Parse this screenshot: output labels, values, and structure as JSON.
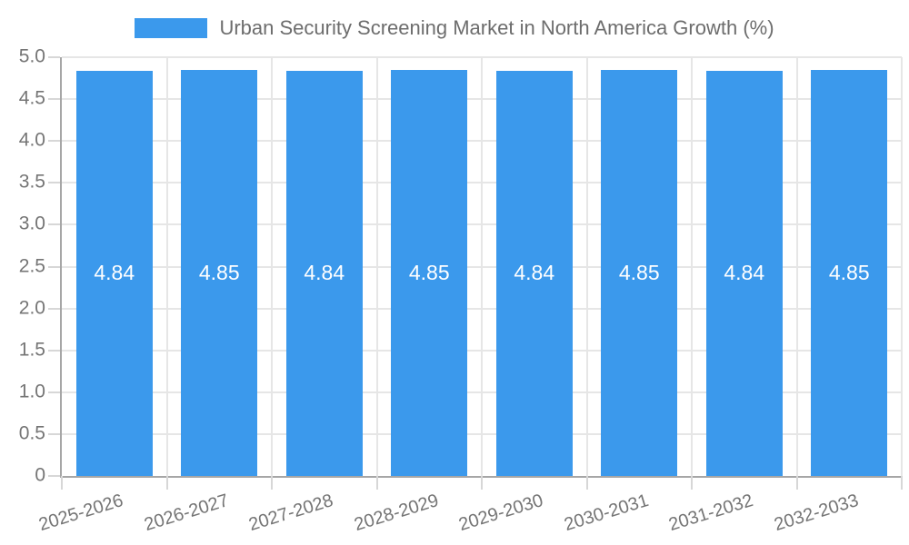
{
  "legend": {
    "label": "Urban Security Screening Market in North America Growth (%)"
  },
  "chart_data": {
    "type": "bar",
    "title": "Urban Security Screening Market in North America Growth (%)",
    "categories": [
      "2025-2026",
      "2026-2027",
      "2027-2028",
      "2028-2029",
      "2029-2030",
      "2030-2031",
      "2031-2032",
      "2032-2033"
    ],
    "values": [
      4.84,
      4.85,
      4.84,
      4.85,
      4.84,
      4.85,
      4.84,
      4.85
    ],
    "value_labels": [
      "4.84",
      "4.85",
      "4.84",
      "4.85",
      "4.84",
      "4.85",
      "4.84",
      "4.85"
    ],
    "xlabel": "",
    "ylabel": "",
    "ylim": [
      0,
      5
    ],
    "ytick_labels": [
      "0",
      "0.5",
      "1.0",
      "1.5",
      "2.0",
      "2.5",
      "3.0",
      "3.5",
      "4.0",
      "4.5",
      "5.0"
    ],
    "grid": "horizontal lines at 0.5 steps plus vertical category boundaries",
    "legend_position": "top-center",
    "x_label_rotation_deg": -17,
    "colors": {
      "bar": "#3b99ec",
      "grid": "#e6e6e6",
      "axis": "#a6a6a6",
      "tick": "#d7d7d7",
      "axis_label": "#757575",
      "title": "#6d6d6d",
      "bar_label": "#ffffff"
    }
  }
}
